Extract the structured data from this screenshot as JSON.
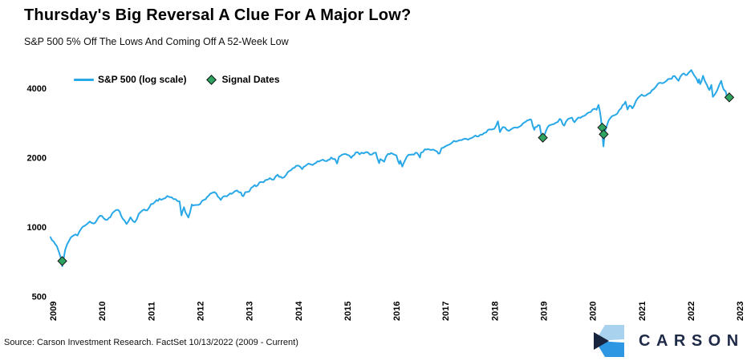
{
  "header": {
    "title": "Thursday's Big Reversal A Clue For A Major Low?",
    "subtitle": "S&P 500 5% Off The Lows And Coming Off A 52-Week Low"
  },
  "legend": {
    "items": [
      {
        "label": "S&P 500 (log scale)",
        "swatch": "line-swatch",
        "color": "#29a8e8"
      },
      {
        "label": "Signal Dates",
        "swatch": "diamond-swatch",
        "color": "#2fa360"
      }
    ]
  },
  "footer": {
    "source": "Source: Carson Investment Research. FactSet 10/13/2022 (2009 - Current)",
    "brand": "CARSON",
    "brand_color": "#1e2a47",
    "logo_colors": {
      "light": "#a9d2ef",
      "dark": "#19243e",
      "blue": "#2e97e4"
    }
  },
  "chart_data": {
    "type": "line",
    "title": "Thursday's Big Reversal A Clue For A Major Low?",
    "subtitle": "S&P 500 5% Off The Lows And Coming Off A 52-Week Low",
    "xlabel": "",
    "ylabel": "",
    "grid": false,
    "legend_position": "top-left",
    "y_axis": {
      "scale": "log",
      "ref": 4000,
      "ticks": [
        4000,
        2000,
        1000,
        500
      ],
      "range": [
        450,
        5200
      ]
    },
    "x_axis": {
      "ticks": [
        2009,
        2010,
        2011,
        2012,
        2013,
        2014,
        2015,
        2016,
        2017,
        2018,
        2019,
        2020,
        2021,
        2022,
        2023
      ],
      "range": [
        2008.95,
        2023
      ]
    },
    "series": [
      {
        "name": "S&P 500 (log scale)",
        "color": "#29a8e8",
        "points": [
          [
            2008.95,
            903
          ],
          [
            2009.08,
            826
          ],
          [
            2009.16,
            735
          ],
          [
            2009.19,
            676
          ],
          [
            2009.25,
            798
          ],
          [
            2009.33,
            873
          ],
          [
            2009.42,
            919
          ],
          [
            2009.5,
            919
          ],
          [
            2009.58,
            987
          ],
          [
            2009.67,
            1021
          ],
          [
            2009.75,
            1057
          ],
          [
            2009.83,
            1036
          ],
          [
            2009.92,
            1096
          ],
          [
            2010,
            1115
          ],
          [
            2010.08,
            1074
          ],
          [
            2010.17,
            1104
          ],
          [
            2010.25,
            1169
          ],
          [
            2010.33,
            1187
          ],
          [
            2010.42,
            1089
          ],
          [
            2010.5,
            1031
          ],
          [
            2010.58,
            1102
          ],
          [
            2010.67,
            1049
          ],
          [
            2010.75,
            1141
          ],
          [
            2010.83,
            1183
          ],
          [
            2010.92,
            1181
          ],
          [
            2011,
            1258
          ],
          [
            2011.08,
            1286
          ],
          [
            2011.17,
            1327
          ],
          [
            2011.25,
            1326
          ],
          [
            2011.33,
            1364
          ],
          [
            2011.42,
            1345
          ],
          [
            2011.5,
            1321
          ],
          [
            2011.58,
            1292
          ],
          [
            2011.62,
            1123
          ],
          [
            2011.67,
            1219
          ],
          [
            2011.73,
            1131
          ],
          [
            2011.76,
            1099
          ],
          [
            2011.83,
            1253
          ],
          [
            2011.92,
            1247
          ],
          [
            2012,
            1258
          ],
          [
            2012.08,
            1312
          ],
          [
            2012.17,
            1366
          ],
          [
            2012.25,
            1408
          ],
          [
            2012.33,
            1398
          ],
          [
            2012.42,
            1310
          ],
          [
            2012.5,
            1362
          ],
          [
            2012.58,
            1379
          ],
          [
            2012.67,
            1407
          ],
          [
            2012.75,
            1441
          ],
          [
            2012.83,
            1412
          ],
          [
            2012.88,
            1360
          ],
          [
            2012.92,
            1416
          ],
          [
            2013,
            1426
          ],
          [
            2013.08,
            1498
          ],
          [
            2013.17,
            1515
          ],
          [
            2013.25,
            1569
          ],
          [
            2013.33,
            1598
          ],
          [
            2013.42,
            1631
          ],
          [
            2013.5,
            1606
          ],
          [
            2013.58,
            1686
          ],
          [
            2013.67,
            1633
          ],
          [
            2013.75,
            1682
          ],
          [
            2013.83,
            1757
          ],
          [
            2013.92,
            1806
          ],
          [
            2014,
            1848
          ],
          [
            2014.08,
            1783
          ],
          [
            2014.17,
            1859
          ],
          [
            2014.25,
            1872
          ],
          [
            2014.33,
            1884
          ],
          [
            2014.42,
            1924
          ],
          [
            2014.5,
            1960
          ],
          [
            2014.58,
            1931
          ],
          [
            2014.67,
            2003
          ],
          [
            2014.75,
            1972
          ],
          [
            2014.79,
            1887
          ],
          [
            2014.83,
            2018
          ],
          [
            2014.92,
            2068
          ],
          [
            2015,
            2059
          ],
          [
            2015.08,
            1995
          ],
          [
            2015.17,
            2105
          ],
          [
            2015.25,
            2068
          ],
          [
            2015.33,
            2086
          ],
          [
            2015.42,
            2107
          ],
          [
            2015.5,
            2063
          ],
          [
            2015.58,
            2104
          ],
          [
            2015.65,
            1893
          ],
          [
            2015.67,
            1972
          ],
          [
            2015.75,
            1920
          ],
          [
            2015.83,
            2079
          ],
          [
            2015.92,
            2080
          ],
          [
            2016,
            2044
          ],
          [
            2016.06,
            1880
          ],
          [
            2016.08,
            1940
          ],
          [
            2016.12,
            1829
          ],
          [
            2016.17,
            1932
          ],
          [
            2016.25,
            2060
          ],
          [
            2016.33,
            2065
          ],
          [
            2016.42,
            2097
          ],
          [
            2016.48,
            2001
          ],
          [
            2016.5,
            2099
          ],
          [
            2016.58,
            2174
          ],
          [
            2016.67,
            2171
          ],
          [
            2016.75,
            2168
          ],
          [
            2016.83,
            2126
          ],
          [
            2016.88,
            2085
          ],
          [
            2016.92,
            2199
          ],
          [
            2017,
            2239
          ],
          [
            2017.08,
            2279
          ],
          [
            2017.17,
            2364
          ],
          [
            2017.25,
            2363
          ],
          [
            2017.33,
            2384
          ],
          [
            2017.42,
            2412
          ],
          [
            2017.5,
            2423
          ],
          [
            2017.58,
            2470
          ],
          [
            2017.67,
            2472
          ],
          [
            2017.75,
            2519
          ],
          [
            2017.83,
            2575
          ],
          [
            2017.92,
            2648
          ],
          [
            2018,
            2674
          ],
          [
            2018.07,
            2873
          ],
          [
            2018.11,
            2581
          ],
          [
            2018.17,
            2714
          ],
          [
            2018.25,
            2641
          ],
          [
            2018.33,
            2648
          ],
          [
            2018.42,
            2705
          ],
          [
            2018.5,
            2718
          ],
          [
            2018.58,
            2816
          ],
          [
            2018.67,
            2902
          ],
          [
            2018.73,
            2931
          ],
          [
            2018.75,
            2914
          ],
          [
            2018.81,
            2641
          ],
          [
            2018.83,
            2712
          ],
          [
            2018.92,
            2760
          ],
          [
            2018.98,
            2351
          ],
          [
            2019.02,
            2510
          ],
          [
            2019.08,
            2704
          ],
          [
            2019.17,
            2784
          ],
          [
            2019.25,
            2834
          ],
          [
            2019.33,
            2946
          ],
          [
            2019.42,
            2752
          ],
          [
            2019.5,
            2942
          ],
          [
            2019.58,
            2980
          ],
          [
            2019.63,
            2847
          ],
          [
            2019.67,
            2926
          ],
          [
            2019.75,
            2977
          ],
          [
            2019.83,
            3038
          ],
          [
            2019.92,
            3141
          ],
          [
            2020,
            3231
          ],
          [
            2020.08,
            3226
          ],
          [
            2020.12,
            3386
          ],
          [
            2020.17,
            2954
          ],
          [
            2020.22,
            2237
          ],
          [
            2020.25,
            2585
          ],
          [
            2020.33,
            2912
          ],
          [
            2020.42,
            3044
          ],
          [
            2020.5,
            3100
          ],
          [
            2020.58,
            3271
          ],
          [
            2020.67,
            3500
          ],
          [
            2020.71,
            3237
          ],
          [
            2020.75,
            3363
          ],
          [
            2020.81,
            3270
          ],
          [
            2020.92,
            3622
          ],
          [
            2021,
            3756
          ],
          [
            2021.08,
            3714
          ],
          [
            2021.17,
            3811
          ],
          [
            2021.25,
            3973
          ],
          [
            2021.33,
            4181
          ],
          [
            2021.42,
            4204
          ],
          [
            2021.5,
            4298
          ],
          [
            2021.58,
            4395
          ],
          [
            2021.67,
            4523
          ],
          [
            2021.75,
            4308
          ],
          [
            2021.83,
            4605
          ],
          [
            2021.92,
            4567
          ],
          [
            2022,
            4766
          ],
          [
            2022.01,
            4797
          ],
          [
            2022.08,
            4516
          ],
          [
            2022.15,
            4226
          ],
          [
            2022.17,
            4374
          ],
          [
            2022.19,
            4170
          ],
          [
            2022.25,
            4530
          ],
          [
            2022.33,
            4132
          ],
          [
            2022.38,
            3930
          ],
          [
            2022.42,
            4132
          ],
          [
            2022.45,
            3667
          ],
          [
            2022.5,
            3785
          ],
          [
            2022.58,
            4130
          ],
          [
            2022.62,
            4305
          ],
          [
            2022.67,
            3955
          ],
          [
            2022.71,
            3873
          ],
          [
            2022.75,
            3586
          ],
          [
            2022.78,
            3577
          ],
          [
            2022.79,
            3669
          ]
        ]
      }
    ],
    "signals": {
      "name": "Signal Dates",
      "color": "#2fa360",
      "points": [
        [
          2009.19,
          712
        ],
        [
          2018.985,
          2441
        ],
        [
          2020.195,
          2700
        ],
        [
          2020.225,
          2526
        ],
        [
          2022.785,
          3652
        ]
      ]
    }
  }
}
